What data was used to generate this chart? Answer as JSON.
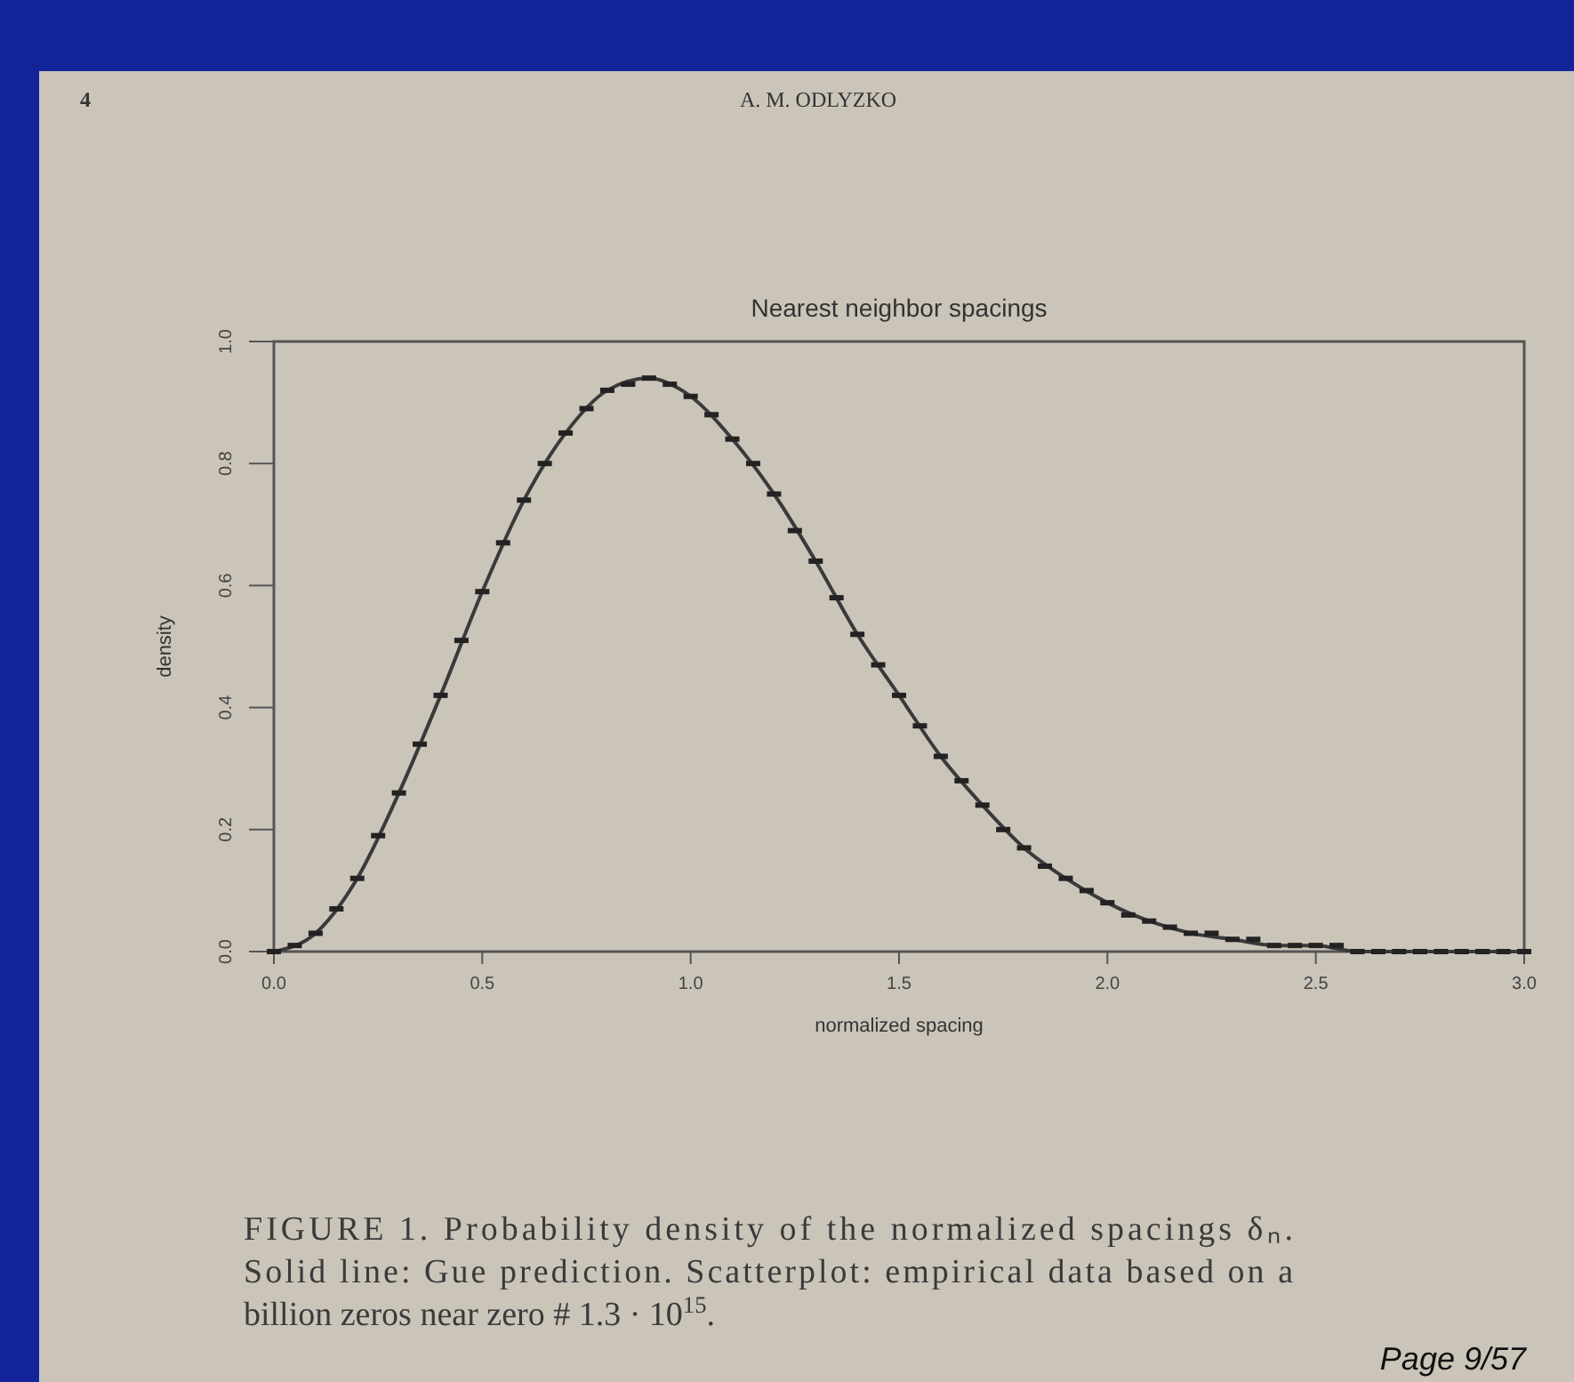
{
  "chart_data": {
    "type": "line",
    "title": "Nearest neighbor spacings",
    "xlabel": "normalized spacing",
    "ylabel": "density",
    "xlim": [
      0,
      3
    ],
    "ylim": [
      0,
      1
    ],
    "xticks": [
      {
        "value": 0,
        "label": "0.0"
      },
      {
        "value": 0.5,
        "label": "0.5"
      },
      {
        "value": 1,
        "label": "1.0"
      },
      {
        "value": 1.5,
        "label": "1.5"
      },
      {
        "value": 2,
        "label": "2.0"
      },
      {
        "value": 2.5,
        "label": "2.5"
      },
      {
        "value": 3,
        "label": "3.0"
      }
    ],
    "yticks": [
      {
        "value": 0,
        "label": "0.0"
      },
      {
        "value": 0.2,
        "label": "0.2"
      },
      {
        "value": 0.4,
        "label": "0.4"
      },
      {
        "value": 0.6,
        "label": "0.6"
      },
      {
        "value": 0.8,
        "label": "0.8"
      },
      {
        "value": 1,
        "label": "1.0"
      }
    ],
    "grid": false,
    "series": [
      {
        "color": "#3a3a3a",
        "line_style": "solid",
        "x": [
          0,
          0.1,
          0.2,
          0.3,
          0.4,
          0.5,
          0.6,
          0.7,
          0.8,
          0.9,
          1.0,
          1.1,
          1.2,
          1.3,
          1.4,
          1.5,
          1.6,
          1.7,
          1.8,
          1.9,
          2.0,
          2.1,
          2.2,
          2.3,
          2.4,
          2.5,
          2.6,
          2.8,
          3.0
        ],
        "values": [
          0,
          0.03,
          0.12,
          0.26,
          0.42,
          0.59,
          0.74,
          0.85,
          0.92,
          0.94,
          0.91,
          0.84,
          0.75,
          0.64,
          0.52,
          0.42,
          0.32,
          0.24,
          0.17,
          0.12,
          0.08,
          0.05,
          0.03,
          0.02,
          0.01,
          0.01,
          0,
          0,
          0
        ]
      },
      {
        "type": "scatter",
        "color": "#222222",
        "x": [
          0,
          0.05,
          0.1,
          0.15,
          0.2,
          0.25,
          0.3,
          0.35,
          0.4,
          0.45,
          0.5,
          0.55,
          0.6,
          0.65,
          0.7,
          0.75,
          0.8,
          0.85,
          0.9,
          0.95,
          1.0,
          1.05,
          1.1,
          1.15,
          1.2,
          1.25,
          1.3,
          1.35,
          1.4,
          1.45,
          1.5,
          1.55,
          1.6,
          1.65,
          1.7,
          1.75,
          1.8,
          1.85,
          1.9,
          1.95,
          2.0,
          2.05,
          2.1,
          2.15,
          2.2,
          2.25,
          2.3,
          2.35,
          2.4,
          2.45,
          2.5,
          2.55,
          2.6,
          2.65,
          2.7,
          2.75,
          2.8,
          2.85,
          2.9,
          2.95,
          3.0
        ],
        "values": [
          0,
          0.01,
          0.03,
          0.07,
          0.12,
          0.19,
          0.26,
          0.34,
          0.42,
          0.51,
          0.59,
          0.67,
          0.74,
          0.8,
          0.85,
          0.89,
          0.92,
          0.93,
          0.94,
          0.93,
          0.91,
          0.88,
          0.84,
          0.8,
          0.75,
          0.69,
          0.64,
          0.58,
          0.52,
          0.47,
          0.42,
          0.37,
          0.32,
          0.28,
          0.24,
          0.2,
          0.17,
          0.14,
          0.12,
          0.1,
          0.08,
          0.06,
          0.05,
          0.04,
          0.03,
          0.03,
          0.02,
          0.02,
          0.01,
          0.01,
          0.01,
          0.01,
          0,
          0,
          0,
          0,
          0,
          0,
          0,
          0,
          0
        ]
      }
    ],
    "annotations": [
      "4",
      "A. M. ODLYZKO",
      "FIGURE 1. Probability density of the normalized spacings δₙ.\nSolid line: Gue prediction. Scatterplot: empirical data based on a\nbillion zeros near zero # 1.3 · 10$^{15}$.",
      "Page 9/57"
    ]
  }
}
